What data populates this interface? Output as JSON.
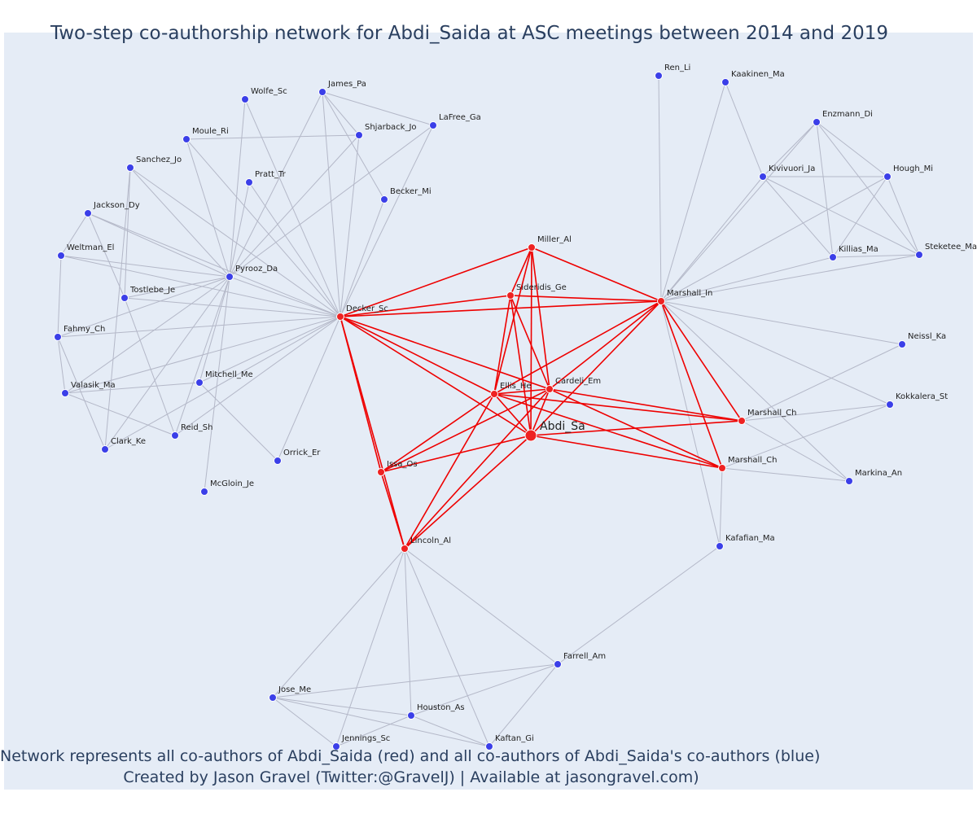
{
  "title": "Two-step co-authorship network for Abdi_Saida at ASC meetings between 2014 and 2019",
  "captions": [
    "Network represents all co-authors of Abdi_Saida (red) and all co-authors of Abdi_Saida's co-authors (blue)",
    "Created by Jason Gravel (Twitter:@GravelJ) | Available at jasongravel.com)"
  ],
  "colors": {
    "background": "#e5ecf6",
    "red_node": "#ee2222",
    "blue_node": "#3b3fe8",
    "red_edge": "#ee0000",
    "grey_edge": "#b4b8c8",
    "text": "#2a3f5f"
  },
  "nodes": [
    {
      "id": "abdi",
      "label": "Abdi_Sa",
      "group": "focal"
    },
    {
      "id": "decker",
      "label": "Decker_Sc",
      "group": "red"
    },
    {
      "id": "miller",
      "label": "Miller_Al",
      "group": "red"
    },
    {
      "id": "sideridis",
      "label": "Sideridis_Ge",
      "group": "red"
    },
    {
      "id": "ellis",
      "label": "Ellis_He",
      "group": "red"
    },
    {
      "id": "cardeli",
      "label": "Cardeli_Em",
      "group": "red"
    },
    {
      "id": "marshall_in",
      "label": "Marshall_In",
      "group": "red"
    },
    {
      "id": "marshall_ch1",
      "label": "Marshall_Ch",
      "group": "red"
    },
    {
      "id": "marshall_ch2",
      "label": "Marshall_Ch",
      "group": "red"
    },
    {
      "id": "issa",
      "label": "Issa_Os",
      "group": "red"
    },
    {
      "id": "lincoln",
      "label": "Lincoln_Al",
      "group": "red"
    },
    {
      "id": "wolfe",
      "label": "Wolfe_Sc",
      "group": "blue"
    },
    {
      "id": "james",
      "label": "James_Pa",
      "group": "blue"
    },
    {
      "id": "moule",
      "label": "Moule_Ri",
      "group": "blue"
    },
    {
      "id": "shjarback",
      "label": "Shjarback_Jo",
      "group": "blue"
    },
    {
      "id": "lafree",
      "label": "LaFree_Ga",
      "group": "blue"
    },
    {
      "id": "sanchez",
      "label": "Sanchez_Jo",
      "group": "blue"
    },
    {
      "id": "pratt",
      "label": "Pratt_Tr",
      "group": "blue"
    },
    {
      "id": "becker",
      "label": "Becker_Mi",
      "group": "blue"
    },
    {
      "id": "jackson",
      "label": "Jackson_Dy",
      "group": "blue"
    },
    {
      "id": "weltman",
      "label": "Weltman_El",
      "group": "blue"
    },
    {
      "id": "pyrooz",
      "label": "Pyrooz_Da",
      "group": "blue"
    },
    {
      "id": "tostlebe",
      "label": "Tostlebe_Je",
      "group": "blue"
    },
    {
      "id": "fahmy",
      "label": "Fahmy_Ch",
      "group": "blue"
    },
    {
      "id": "mitchell",
      "label": "Mitchell_Me",
      "group": "blue"
    },
    {
      "id": "valasik",
      "label": "Valasik_Ma",
      "group": "blue"
    },
    {
      "id": "reid",
      "label": "Reid_Sh",
      "group": "blue"
    },
    {
      "id": "clark",
      "label": "Clark_Ke",
      "group": "blue"
    },
    {
      "id": "orrick",
      "label": "Orrick_Er",
      "group": "blue"
    },
    {
      "id": "mcgloin",
      "label": "McGloin_Je",
      "group": "blue"
    },
    {
      "id": "renli",
      "label": "Ren_Li",
      "group": "blue"
    },
    {
      "id": "kaakinen",
      "label": "Kaakinen_Ma",
      "group": "blue"
    },
    {
      "id": "enzmann",
      "label": "Enzmann_Di",
      "group": "blue"
    },
    {
      "id": "kivivuori",
      "label": "Kivivuori_Ja",
      "group": "blue"
    },
    {
      "id": "hough",
      "label": "Hough_Mi",
      "group": "blue"
    },
    {
      "id": "killias",
      "label": "Killias_Ma",
      "group": "blue"
    },
    {
      "id": "steketee",
      "label": "Steketee_Ma",
      "group": "blue"
    },
    {
      "id": "neissl",
      "label": "Neissl_Ka",
      "group": "blue"
    },
    {
      "id": "kokkalera",
      "label": "Kokkalera_St",
      "group": "blue"
    },
    {
      "id": "markina",
      "label": "Markina_An",
      "group": "blue"
    },
    {
      "id": "kafafian",
      "label": "Kafafian_Ma",
      "group": "blue"
    },
    {
      "id": "farrell",
      "label": "Farrell_Am",
      "group": "blue"
    },
    {
      "id": "jose",
      "label": "Jose_Me",
      "group": "blue"
    },
    {
      "id": "houston",
      "label": "Houston_As",
      "group": "blue"
    },
    {
      "id": "jennings",
      "label": "Jennings_Sc",
      "group": "blue"
    },
    {
      "id": "kaftan",
      "label": "Kaftan_Gi",
      "group": "blue"
    }
  ],
  "red_edges": [
    [
      "abdi",
      "decker"
    ],
    [
      "abdi",
      "miller"
    ],
    [
      "abdi",
      "sideridis"
    ],
    [
      "abdi",
      "ellis"
    ],
    [
      "abdi",
      "cardeli"
    ],
    [
      "abdi",
      "marshall_in"
    ],
    [
      "abdi",
      "marshall_ch1"
    ],
    [
      "abdi",
      "marshall_ch2"
    ],
    [
      "abdi",
      "issa"
    ],
    [
      "abdi",
      "lincoln"
    ],
    [
      "decker",
      "miller"
    ],
    [
      "decker",
      "sideridis"
    ],
    [
      "decker",
      "ellis"
    ],
    [
      "decker",
      "cardeli"
    ],
    [
      "decker",
      "marshall_in"
    ],
    [
      "decker",
      "issa"
    ],
    [
      "decker",
      "lincoln"
    ],
    [
      "miller",
      "sideridis"
    ],
    [
      "miller",
      "ellis"
    ],
    [
      "miller",
      "cardeli"
    ],
    [
      "miller",
      "marshall_in"
    ],
    [
      "sideridis",
      "ellis"
    ],
    [
      "sideridis",
      "cardeli"
    ],
    [
      "sideridis",
      "marshall_in"
    ],
    [
      "ellis",
      "cardeli"
    ],
    [
      "ellis",
      "marshall_in"
    ],
    [
      "ellis",
      "marshall_ch1"
    ],
    [
      "ellis",
      "marshall_ch2"
    ],
    [
      "ellis",
      "issa"
    ],
    [
      "ellis",
      "lincoln"
    ],
    [
      "cardeli",
      "marshall_in"
    ],
    [
      "cardeli",
      "marshall_ch1"
    ],
    [
      "cardeli",
      "marshall_ch2"
    ],
    [
      "cardeli",
      "issa"
    ],
    [
      "cardeli",
      "lincoln"
    ],
    [
      "marshall_in",
      "marshall_ch1"
    ],
    [
      "marshall_in",
      "marshall_ch2"
    ],
    [
      "issa",
      "lincoln"
    ]
  ],
  "grey_edges": [
    [
      "decker",
      "wolfe"
    ],
    [
      "decker",
      "james"
    ],
    [
      "decker",
      "moule"
    ],
    [
      "decker",
      "shjarback"
    ],
    [
      "decker",
      "lafree"
    ],
    [
      "decker",
      "sanchez"
    ],
    [
      "decker",
      "pratt"
    ],
    [
      "decker",
      "becker"
    ],
    [
      "decker",
      "jackson"
    ],
    [
      "decker",
      "weltman"
    ],
    [
      "decker",
      "pyrooz"
    ],
    [
      "decker",
      "tostlebe"
    ],
    [
      "decker",
      "fahmy"
    ],
    [
      "decker",
      "mitchell"
    ],
    [
      "decker",
      "valasik"
    ],
    [
      "decker",
      "reid"
    ],
    [
      "decker",
      "clark"
    ],
    [
      "decker",
      "orrick"
    ],
    [
      "pyrooz",
      "wolfe"
    ],
    [
      "pyrooz",
      "james"
    ],
    [
      "pyrooz",
      "moule"
    ],
    [
      "pyrooz",
      "shjarback"
    ],
    [
      "pyrooz",
      "lafree"
    ],
    [
      "pyrooz",
      "sanchez"
    ],
    [
      "pyrooz",
      "pratt"
    ],
    [
      "pyrooz",
      "jackson"
    ],
    [
      "pyrooz",
      "weltman"
    ],
    [
      "pyrooz",
      "tostlebe"
    ],
    [
      "pyrooz",
      "fahmy"
    ],
    [
      "pyrooz",
      "mitchell"
    ],
    [
      "pyrooz",
      "valasik"
    ],
    [
      "pyrooz",
      "reid"
    ],
    [
      "pyrooz",
      "clark"
    ],
    [
      "pyrooz",
      "mcgloin"
    ],
    [
      "james",
      "shjarback"
    ],
    [
      "james",
      "lafree"
    ],
    [
      "james",
      "becker"
    ],
    [
      "moule",
      "shjarback"
    ],
    [
      "jackson",
      "weltman"
    ],
    [
      "jackson",
      "tostlebe"
    ],
    [
      "sanchez",
      "tostlebe"
    ],
    [
      "sanchez",
      "clark"
    ],
    [
      "weltman",
      "fahmy"
    ],
    [
      "fahmy",
      "valasik"
    ],
    [
      "fahmy",
      "clark"
    ],
    [
      "mitchell",
      "valasik"
    ],
    [
      "mitchell",
      "orrick"
    ],
    [
      "valasik",
      "reid"
    ],
    [
      "tostlebe",
      "reid"
    ],
    [
      "marshall_in",
      "renli"
    ],
    [
      "marshall_in",
      "kaakinen"
    ],
    [
      "marshall_in",
      "enzmann"
    ],
    [
      "marshall_in",
      "kivivuori"
    ],
    [
      "marshall_in",
      "hough"
    ],
    [
      "marshall_in",
      "killias"
    ],
    [
      "marshall_in",
      "steketee"
    ],
    [
      "marshall_in",
      "neissl"
    ],
    [
      "marshall_in",
      "kokkalera"
    ],
    [
      "marshall_in",
      "markina"
    ],
    [
      "marshall_in",
      "kafafian"
    ],
    [
      "kaakinen",
      "kivivuori"
    ],
    [
      "enzmann",
      "kivivuori"
    ],
    [
      "enzmann",
      "hough"
    ],
    [
      "enzmann",
      "killias"
    ],
    [
      "enzmann",
      "steketee"
    ],
    [
      "kivivuori",
      "hough"
    ],
    [
      "kivivuori",
      "killias"
    ],
    [
      "kivivuori",
      "steketee"
    ],
    [
      "hough",
      "killias"
    ],
    [
      "hough",
      "steketee"
    ],
    [
      "killias",
      "steketee"
    ],
    [
      "marshall_ch1",
      "neissl"
    ],
    [
      "marshall_ch1",
      "kokkalera"
    ],
    [
      "marshall_ch1",
      "markina"
    ],
    [
      "marshall_ch2",
      "kokkalera"
    ],
    [
      "marshall_ch2",
      "markina"
    ],
    [
      "marshall_ch2",
      "kafafian"
    ],
    [
      "kafafian",
      "farrell"
    ],
    [
      "lincoln",
      "farrell"
    ],
    [
      "lincoln",
      "jose"
    ],
    [
      "lincoln",
      "houston"
    ],
    [
      "lincoln",
      "jennings"
    ],
    [
      "lincoln",
      "kaftan"
    ],
    [
      "farrell",
      "jose"
    ],
    [
      "farrell",
      "houston"
    ],
    [
      "farrell",
      "kaftan"
    ],
    [
      "jose",
      "houston"
    ],
    [
      "jose",
      "jennings"
    ],
    [
      "jose",
      "kaftan"
    ],
    [
      "houston",
      "jennings"
    ],
    [
      "houston",
      "kaftan"
    ]
  ]
}
